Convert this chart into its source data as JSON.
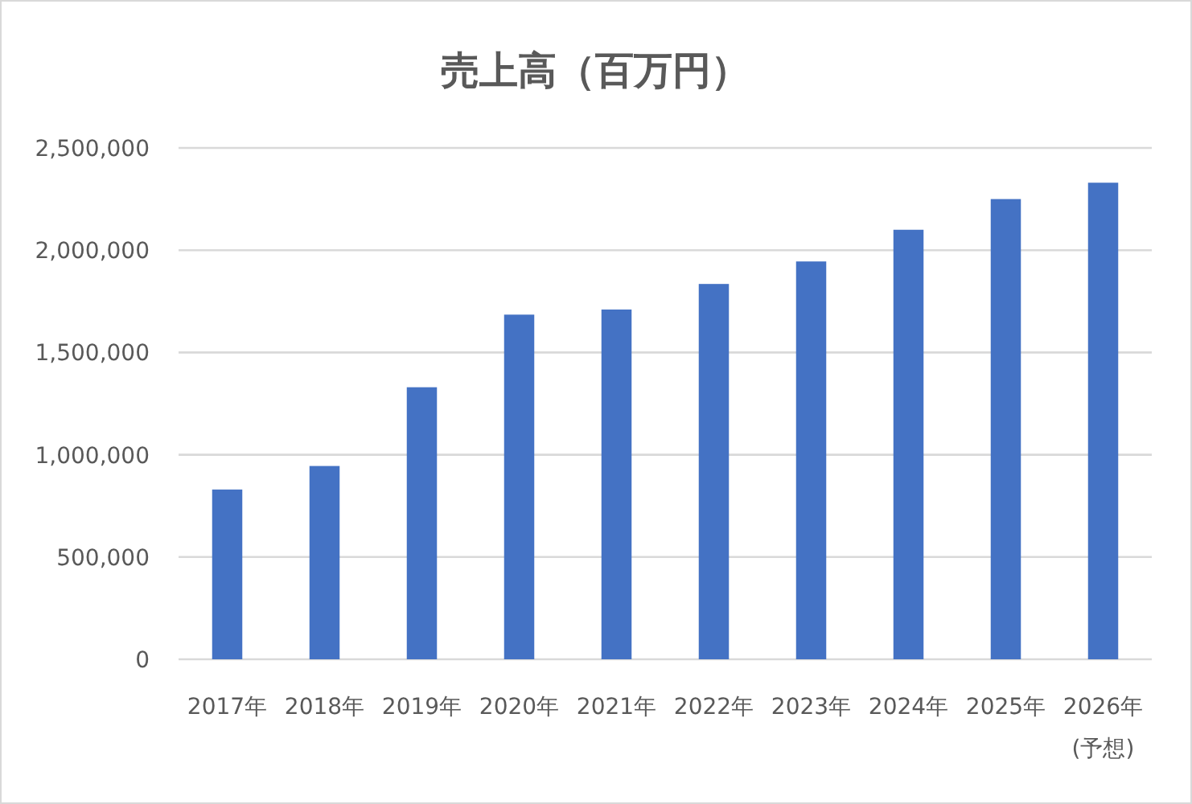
{
  "chart_data": {
    "type": "bar",
    "title": "売上高（百万円）",
    "categories": [
      "2017年",
      "2018年",
      "2019年",
      "2020年",
      "2021年",
      "2022年",
      "2023年",
      "2024年",
      "2025年",
      "2026年(予想)"
    ],
    "values": [
      830000,
      945000,
      1330000,
      1685000,
      1710000,
      1835000,
      1945000,
      2100000,
      2250000,
      2330000
    ],
    "color": "#4472c4",
    "ylim": [
      0,
      2500000
    ],
    "yticks": [
      {
        "value": 0,
        "label": "0"
      },
      {
        "value": 500000,
        "label": "500,000"
      },
      {
        "value": 1000000,
        "label": "1,000,000"
      },
      {
        "value": 1500000,
        "label": "1,500,000"
      },
      {
        "value": 2000000,
        "label": "2,000,000"
      },
      {
        "value": 2500000,
        "label": "2,500,000"
      }
    ],
    "grid": "y"
  }
}
